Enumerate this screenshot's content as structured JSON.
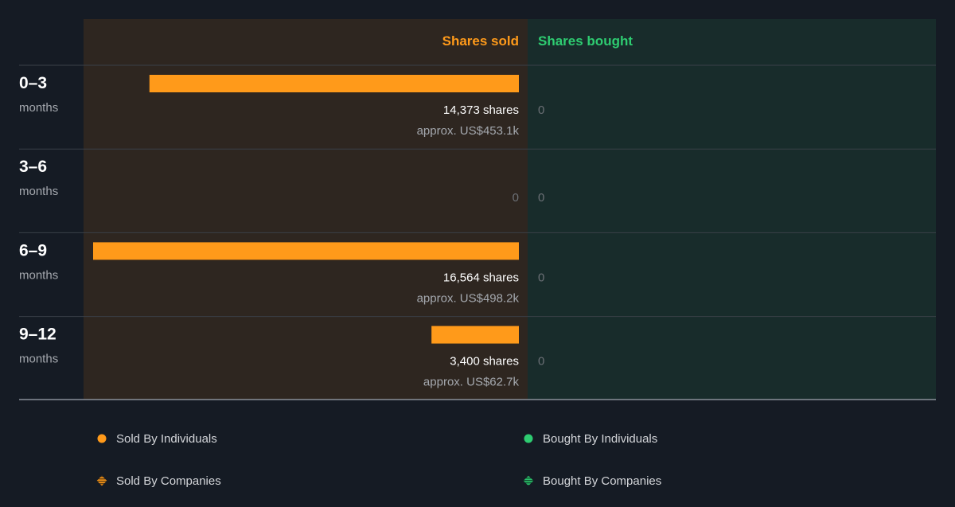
{
  "chart_data": {
    "type": "bar",
    "orientation": "horizontal",
    "columns": {
      "sold_header": "Shares sold",
      "bought_header": "Shares bought"
    },
    "rows": [
      {
        "period": "0–3",
        "unit": "months",
        "sold": 14373,
        "sold_label": "14,373 shares",
        "sold_value": "approx. US$453.1k",
        "bought": 0,
        "bought_label": "0"
      },
      {
        "period": "3–6",
        "unit": "months",
        "sold": 0,
        "sold_label": "0",
        "sold_value": "",
        "bought": 0,
        "bought_label": "0"
      },
      {
        "period": "6–9",
        "unit": "months",
        "sold": 16564,
        "sold_label": "16,564 shares",
        "sold_value": "approx. US$498.2k",
        "bought": 0,
        "bought_label": "0"
      },
      {
        "period": "9–12",
        "unit": "months",
        "sold": 3400,
        "sold_label": "3,400 shares",
        "sold_value": "approx. US$62.7k",
        "bought": 0,
        "bought_label": "0"
      }
    ],
    "legend": [
      {
        "label": "Sold By Individuals",
        "marker": "dot",
        "color": "#ff9a1a"
      },
      {
        "label": "Bought By Individuals",
        "marker": "dot",
        "color": "#2ecc71"
      },
      {
        "label": "Sold By Companies",
        "marker": "striped-diamond",
        "color": "#ff9a1a"
      },
      {
        "label": "Bought By Companies",
        "marker": "striped-diamond",
        "color": "#2ecc71"
      }
    ],
    "legend_position": "bottom",
    "colors": {
      "sold": "#ff9a1a",
      "bought": "#2ecc71",
      "sold_panel": "#2e2620",
      "bought_panel": "#182c2b",
      "background": "#151b24"
    }
  }
}
